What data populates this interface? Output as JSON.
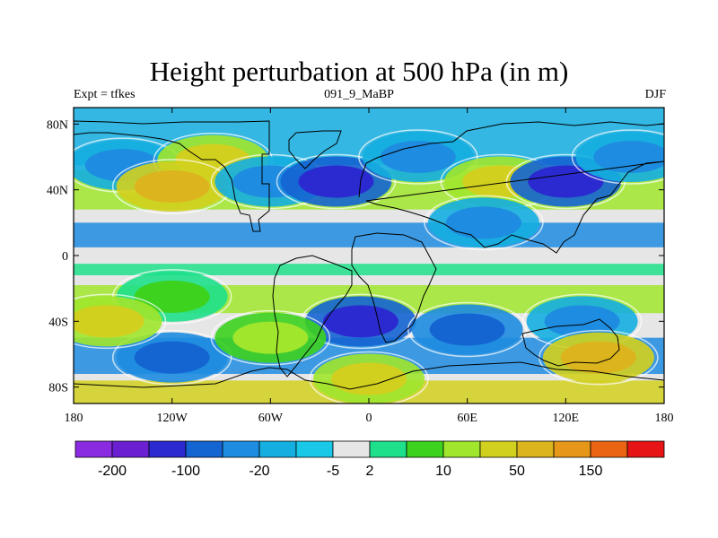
{
  "chart_data": {
    "type": "heatmap",
    "title": "Height perturbation at 500 hPa (in m)",
    "left_label": "Expt = tfkes",
    "center_label": "091_9_MaBP",
    "right_label": "DJF",
    "x_ticks": [
      "180",
      "120W",
      "60W",
      "0",
      "60E",
      "120E",
      "180"
    ],
    "x_tick_values": [
      -180,
      -120,
      -60,
      0,
      60,
      120,
      180
    ],
    "y_ticks": [
      "80N",
      "40N",
      "0",
      "40S",
      "80S"
    ],
    "y_tick_values": [
      80,
      40,
      0,
      -40,
      -80
    ],
    "xlim": [
      -180,
      180
    ],
    "ylim": [
      -90,
      90
    ],
    "colorbar": {
      "colors": [
        "#8a2be2",
        "#6a1fd0",
        "#2a2ad0",
        "#1464d2",
        "#1e8ce0",
        "#14aee0",
        "#18c8e6",
        "#e6e6e6",
        "#1ee08a",
        "#3cd21e",
        "#a0e62c",
        "#d2d01e",
        "#dcb41e",
        "#e69618",
        "#ea6414",
        "#e61414"
      ],
      "labels": [
        "-200",
        "-100",
        "-20",
        "-5",
        "2",
        "10",
        "50",
        "150"
      ],
      "label_after_box": [
        1,
        3,
        5,
        7,
        8,
        10,
        12,
        14
      ]
    },
    "field_regions": [
      {
        "lon": -150,
        "lat": 55,
        "level": 4
      },
      {
        "lon": -95,
        "lat": 58,
        "level": 11
      },
      {
        "lon": -120,
        "lat": 42,
        "level": 12
      },
      {
        "lon": -60,
        "lat": 45,
        "level": 4
      },
      {
        "lon": -20,
        "lat": 45,
        "level": 2
      },
      {
        "lon": 30,
        "lat": 60,
        "level": 4
      },
      {
        "lon": 80,
        "lat": 45,
        "level": 11
      },
      {
        "lon": 120,
        "lat": 45,
        "level": 2
      },
      {
        "lon": 160,
        "lat": 60,
        "level": 4
      },
      {
        "lon": 70,
        "lat": 20,
        "level": 4
      },
      {
        "lon": -120,
        "lat": -25,
        "level": 9
      },
      {
        "lon": -120,
        "lat": -62,
        "level": 3
      },
      {
        "lon": -160,
        "lat": -40,
        "level": 11
      },
      {
        "lon": -5,
        "lat": -40,
        "level": 2
      },
      {
        "lon": -60,
        "lat": -50,
        "level": 10
      },
      {
        "lon": 60,
        "lat": -45,
        "level": 3
      },
      {
        "lon": 130,
        "lat": -40,
        "level": 4
      },
      {
        "lon": 0,
        "lat": -75,
        "level": 11
      },
      {
        "lon": 140,
        "lat": -62,
        "level": 12
      }
    ]
  }
}
